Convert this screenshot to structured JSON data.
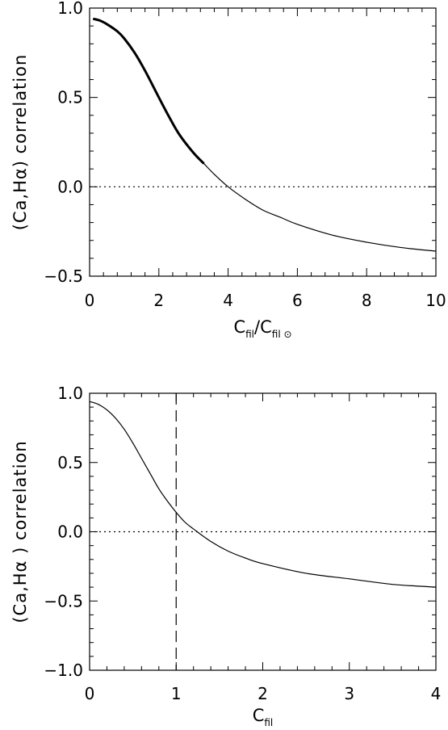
{
  "chart_data": [
    {
      "type": "line",
      "ylabel_parts": [
        "(Ca,H",
        "α",
        ") correlation"
      ],
      "xlabel_parts": {
        "main": "C",
        "sub1": "fil",
        "slash": "/",
        "main2": "C",
        "sub2": "fil ⊙"
      },
      "xlim": [
        0,
        10
      ],
      "ylim": [
        -0.5,
        1.0
      ],
      "xticks": [
        0,
        2,
        4,
        6,
        8,
        10
      ],
      "xtick_labels": [
        "0",
        "2",
        "4",
        "6",
        "8",
        "10"
      ],
      "yticks": [
        -0.5,
        0.0,
        0.5,
        1.0
      ],
      "ytick_labels": [
        "−0.5",
        "0.0",
        "0.5",
        "1.0"
      ],
      "reference_line_y": 0.0,
      "series": [
        {
          "style": "solid",
          "x": [
            0.1,
            0.3,
            0.5,
            0.8,
            1.0,
            1.3,
            1.6,
            2.0,
            2.3,
            2.6,
            3.0,
            3.3,
            3.6,
            4.0,
            4.5,
            5.0,
            5.5,
            6.0,
            7.0,
            8.0,
            9.0,
            10.0
          ],
          "y": [
            0.94,
            0.93,
            0.91,
            0.87,
            0.83,
            0.75,
            0.65,
            0.5,
            0.39,
            0.29,
            0.19,
            0.13,
            0.07,
            0.0,
            -0.07,
            -0.13,
            -0.17,
            -0.21,
            -0.27,
            -0.31,
            -0.34,
            -0.36
          ],
          "highlight_x_max": 3.3
        }
      ]
    },
    {
      "type": "line",
      "ylabel_parts": [
        "(Ca,H",
        "α",
        " ) correlation"
      ],
      "xlabel_parts": {
        "main": "C",
        "sub1": "fil"
      },
      "xlim": [
        0,
        4
      ],
      "ylim": [
        -1.0,
        1.0
      ],
      "xticks": [
        0,
        1,
        2,
        3,
        4
      ],
      "xtick_labels": [
        "0",
        "1",
        "2",
        "3",
        "4"
      ],
      "yticks": [
        -1.0,
        -0.5,
        0.0,
        0.5,
        1.0
      ],
      "ytick_labels": [
        "−1.0",
        "−0.5",
        "0.0",
        "0.5",
        "1.0"
      ],
      "reference_line_y": 0.0,
      "vertical_line_x": 1.0,
      "series": [
        {
          "style": "solid",
          "x": [
            0.0,
            0.1,
            0.2,
            0.3,
            0.4,
            0.5,
            0.6,
            0.7,
            0.8,
            0.9,
            1.0,
            1.1,
            1.2,
            1.4,
            1.6,
            1.8,
            2.0,
            2.5,
            3.0,
            3.5,
            4.0
          ],
          "y": [
            0.94,
            0.92,
            0.88,
            0.82,
            0.74,
            0.64,
            0.53,
            0.42,
            0.31,
            0.22,
            0.14,
            0.07,
            0.02,
            -0.07,
            -0.14,
            -0.19,
            -0.23,
            -0.3,
            -0.34,
            -0.38,
            -0.4
          ]
        }
      ]
    }
  ]
}
